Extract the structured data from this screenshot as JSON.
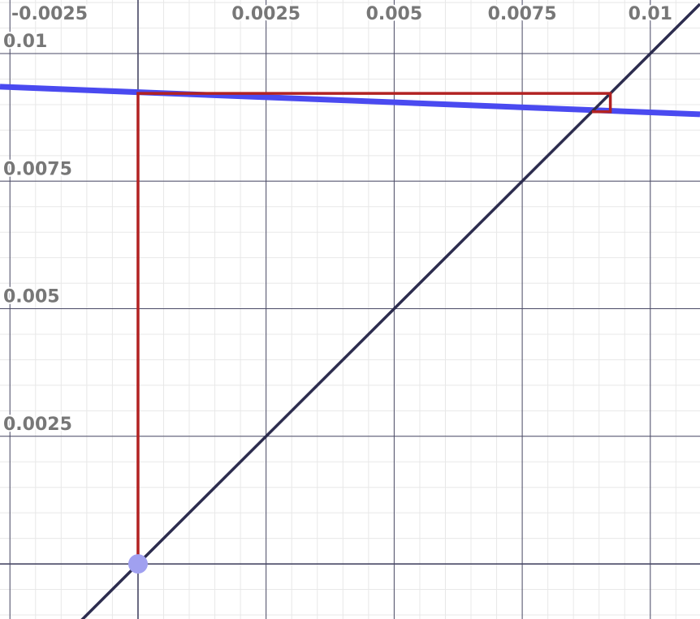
{
  "chart_data": {
    "type": "line",
    "xlim": [
      -0.002694,
      0.01097
    ],
    "ylim": [
      -0.00108,
      0.01105
    ],
    "xticks": [
      -0.0025,
      0.0025,
      0.005,
      0.0075,
      0.01
    ],
    "yticks": [
      0.0025,
      0.005,
      0.0075,
      0.01
    ],
    "grid": true,
    "series": [
      {
        "color": "#4a4af0",
        "x": [
          -0.002694,
          0.01097
        ],
        "values": [
          0.00935,
          0.00881
        ]
      },
      {
        "color": "#2d2d4f",
        "x": [
          -0.0011,
          0.01097
        ],
        "values": [
          -0.0011,
          0.01097
        ]
      },
      {
        "color": "#b22222",
        "x": [
          0,
          0,
          0.00922,
          0.00922,
          0.00886
        ],
        "values": [
          0,
          0.00922,
          0.00922,
          0.00886,
          0.00886
        ]
      }
    ],
    "point": {
      "color": "#a0a0f0",
      "x": 0,
      "value": 0
    }
  }
}
